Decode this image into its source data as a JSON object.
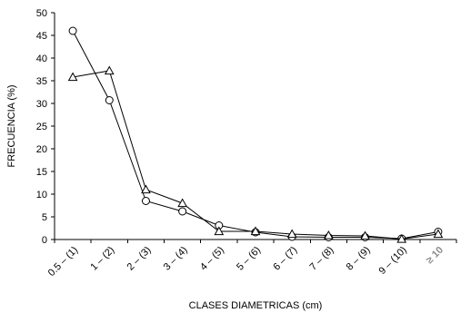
{
  "chart_data": {
    "type": "line",
    "title": "",
    "xlabel": "CLASES DIAMETRICAS (cm)",
    "ylabel": "FRECUENCIA (%)",
    "ylim": [
      0,
      50
    ],
    "yticks": [
      0,
      5,
      10,
      15,
      20,
      25,
      30,
      35,
      40,
      45,
      50
    ],
    "grid": false,
    "legend": "none",
    "categories": [
      "0.5 – (1)",
      "1 – (2)",
      "2 – (3)",
      "3 – (4)",
      "4 – (5)",
      "5 – (6)",
      "6 – (7)",
      "7 – (8)",
      "8 – (9)",
      "9 – (10)",
      "≥ 10"
    ],
    "highlight_category_color": "#8a8a8a",
    "series": [
      {
        "marker": "circle",
        "values": [
          46,
          30.7,
          8.5,
          6.2,
          3.1,
          1.6,
          0.6,
          0.5,
          0.5,
          0.2,
          1.7
        ]
      },
      {
        "marker": "triangle",
        "values": [
          35.8,
          37.2,
          11,
          8,
          1.8,
          1.8,
          1.2,
          0.9,
          0.8,
          0.1,
          1.2
        ]
      }
    ]
  }
}
